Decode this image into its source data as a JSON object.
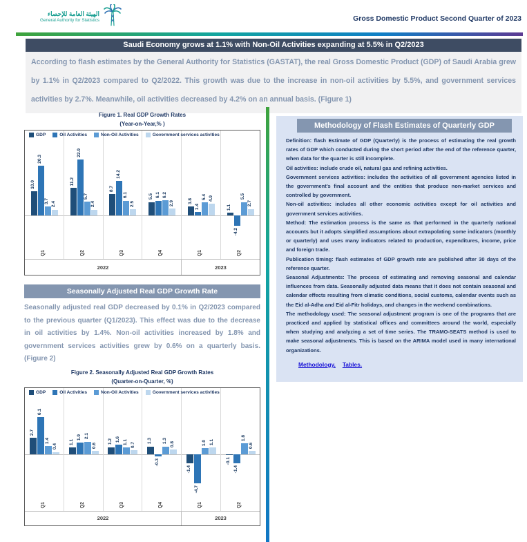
{
  "header": {
    "logo": {
      "arabic": "الهيئة العامة للإحصاء",
      "english": "General Authority for Statistics"
    },
    "doc_title": "Gross Domestic Product Second Quarter of 2023"
  },
  "banner1": {
    "text": "Saudi Economy grows at 1.1% with Non-Oil Activities expanding at 5.5% in Q2/2023"
  },
  "intro": {
    "text": "According to flash estimates by the General Authority for Statistics (GASTAT), the real Gross Domestic Product (GDP) of Saudi Arabia grew by 1.1% in Q2/2023 compared to Q2/2022. This growth was due to the increase in non-oil activities by 5.5%, and government services activities by 2.7%.  Meanwhile, oil activities decreased by 4.2% on an annual basis. (Figure 1)"
  },
  "section2": {
    "banner": "Seasonally Adjusted Real GDP Growth Rate",
    "paragraph": "Seasonally adjusted real GDP decreased by 0.1% in Q2/2023 compared to the previous quarter (Q1/2023). This effect was due to the decrease in oil activities by 1.4%. Non-oil activities increased by 1.8% and government services activities grew by 0.6% on a quarterly basis. (Figure 2)"
  },
  "methodology": {
    "banner": "Methodology of Flash Estimates of Quarterly GDP",
    "paragraphs": [
      "Definition: flash Estimate of GDP (Quarterly) is the process of estimating the real growth rates of GDP which conducted during the short period after the end of the reference quarter, when data for the quarter is still incomplete.",
      "Oil activities: include crude oil, natural gas and refining activities.",
      "Government services activities: includes the activities of all government agencies listed in the government's final account and the entities that produce non-market services and controlled by government.",
      "Non-oil activities: includes all other economic activities except for oil activities and government services activities.",
      "Method: The estimation process is the same as that performed in the quarterly national accounts but it adopts simplified assumptions about extrapolating some indicators (monthly or quarterly) and uses many indicators related to production, expenditures, income, price and foreign trade.",
      "Publication timing: flash estimates of GDP growth rate are published after 30 days of the reference quarter.",
      "Seasonal Adjustments: The process of estimating and removing seasonal and calendar influences from data. Seasonally adjusted data means that it does not contain seasonal and calendar effects resulting from climatic conditions, social customs, calendar events such as the Eid al-Adha and Eid al-Fitr holidays, and changes in the weekend combinations.",
      "The methodology used: The seasonal adjustment program is one of the programs that are practiced and applied by statistical offices and committees around the world, especially when studying and analyzing a set of time series. The TRAMO-SEATS method is used to make seasonal adjustments. This is based on the ARIMA model used in many international organizations."
    ],
    "links": [
      "Methodology.",
      "Tables."
    ]
  },
  "colors": {
    "banner_dark": "#3e4c63",
    "banner_slate": "#8496b0",
    "panel_bg": "#dae3f3",
    "text_slate": "#8496b0",
    "text_navy": "#1f3864",
    "link_blue": "#1812d6",
    "brand_teal": "#199f92",
    "series_gdp": "#1f4e79",
    "series_oil": "#2e75b6",
    "series_nonoil": "#5b9bd5",
    "series_gov": "#bdd7ee"
  },
  "chart_data": [
    {
      "type": "bar",
      "title": "Figure 1. Real GDP Growth Rates",
      "subtitle": "(Year-on-Year,% )",
      "categories": [
        "Q1",
        "Q2",
        "Q3",
        "Q4",
        "Q1",
        "Q2"
      ],
      "year_groups": [
        {
          "label": "2022",
          "count": 4
        },
        {
          "label": "2023",
          "count": 2
        }
      ],
      "legend_position": "top",
      "grid": false,
      "ylim": [
        -6,
        25
      ],
      "series": [
        {
          "name": "GDP",
          "color": "#1f4e79",
          "values": [
            10.0,
            11.2,
            8.7,
            5.5,
            3.8,
            1.1
          ]
        },
        {
          "name": "Oil Activities",
          "color": "#2e75b6",
          "values": [
            20.3,
            22.9,
            14.2,
            6.1,
            1.4,
            -4.2
          ]
        },
        {
          "name": "Non-Oil Activities",
          "color": "#5b9bd5",
          "values": [
            3.7,
            5.7,
            6.1,
            6.2,
            5.4,
            5.5
          ]
        },
        {
          "name": "Government services activities",
          "color": "#bdd7ee",
          "values": [
            2.4,
            2.4,
            2.5,
            2.9,
            4.9,
            2.7
          ]
        }
      ]
    },
    {
      "type": "bar",
      "title": "Figure 2. Seasonally Adjusted Real GDP Growth Rates",
      "subtitle": "(Quarter-on-Quarter, %)",
      "categories": [
        "Q1",
        "Q2",
        "Q3",
        "Q4",
        "Q1",
        "Q2"
      ],
      "year_groups": [
        {
          "label": "2022",
          "count": 4
        },
        {
          "label": "2023",
          "count": 2
        }
      ],
      "legend_position": "top",
      "grid": false,
      "ylim": [
        -6,
        7
      ],
      "series": [
        {
          "name": "GDP",
          "color": "#1f4e79",
          "values": [
            2.7,
            1.1,
            1.2,
            1.3,
            -1.4,
            -0.1
          ]
        },
        {
          "name": "Oil Activities",
          "color": "#2e75b6",
          "values": [
            6.1,
            1.9,
            1.6,
            -0.3,
            -4.7,
            -1.4
          ]
        },
        {
          "name": "Non-Oil Activities",
          "color": "#5b9bd5",
          "values": [
            1.4,
            2.1,
            1.1,
            1.3,
            1.0,
            1.8
          ]
        },
        {
          "name": "Government services activities",
          "color": "#bdd7ee",
          "values": [
            0.4,
            0.6,
            0.7,
            0.8,
            1.1,
            0.6
          ]
        }
      ]
    }
  ]
}
